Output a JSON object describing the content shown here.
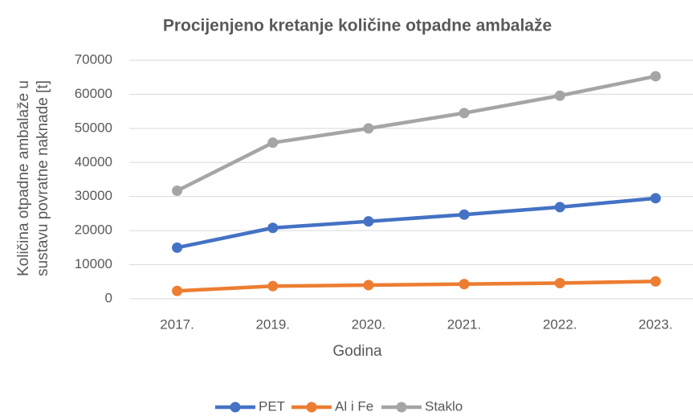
{
  "chart_data": {
    "type": "line",
    "title": "Procijenjeno kretanje količine otpadne ambalaže",
    "xlabel": "Godina",
    "ylabel": [
      "Količina otpadne ambalaže u",
      "sustavu povratne naknade [t]"
    ],
    "categories": [
      "2017.",
      "2019.",
      "2020.",
      "2021.",
      "2022.",
      "2023."
    ],
    "series": [
      {
        "name": "PET",
        "color": "#4472c4",
        "values": [
          15000,
          20800,
          22700,
          24700,
          26900,
          29500
        ]
      },
      {
        "name": "Al i Fe",
        "color": "#ed7d31",
        "values": [
          2300,
          3700,
          4000,
          4300,
          4600,
          5100
        ]
      },
      {
        "name": "Staklo",
        "color": "#a5a5a5",
        "values": [
          31700,
          45800,
          50000,
          54500,
          59600,
          65300
        ]
      }
    ],
    "ylim": [
      0,
      70000
    ],
    "yticks": [
      0,
      10000,
      20000,
      30000,
      40000,
      50000,
      60000,
      70000
    ],
    "grid": true,
    "legend": "bottom"
  }
}
